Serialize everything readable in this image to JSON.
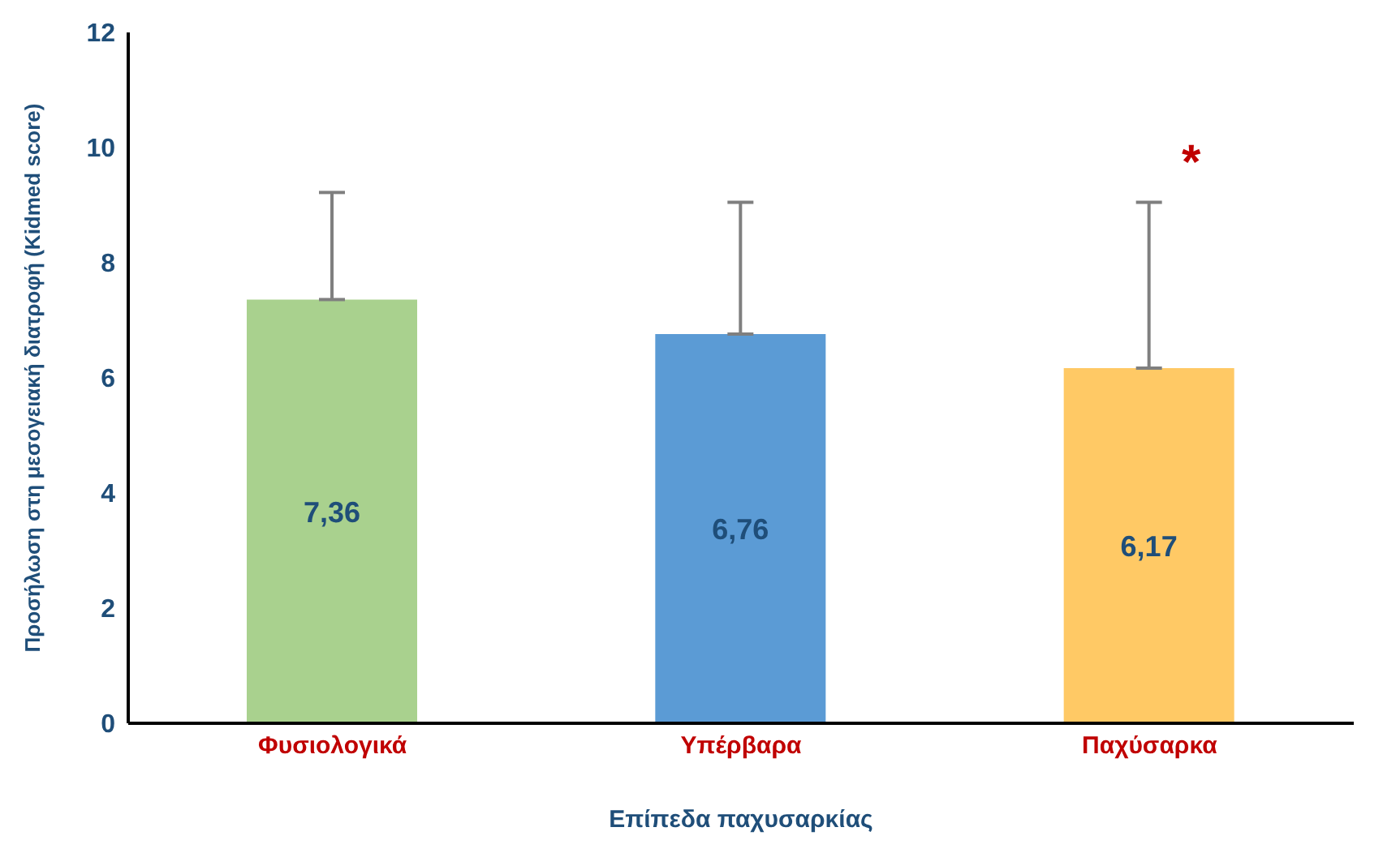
{
  "chart_data": {
    "type": "bar",
    "xlabel": "Επίπεδα παχυσαρκίας",
    "ylabel": "Προσήλωση στη μεσογειακή διατροφή (Kidmed score)",
    "categories": [
      "Φυσιολογικά",
      "Υπέρβαρα",
      "Παχύσαρκα"
    ],
    "values": [
      7.36,
      6.76,
      6.17
    ],
    "colors": [
      "#a9d18e",
      "#5b9bd5",
      "#ffc965"
    ],
    "value_labels": [
      "7,36",
      "6,76",
      "6,17"
    ],
    "errors": [
      [
        7.36,
        9.22
      ],
      [
        6.76,
        9.05
      ],
      [
        6.17,
        9.05
      ]
    ],
    "ylim": [
      0,
      12
    ],
    "yticks": [
      0,
      2,
      4,
      6,
      8,
      10,
      12
    ],
    "grid": false,
    "legend": false,
    "annotations": [
      "*"
    ]
  }
}
